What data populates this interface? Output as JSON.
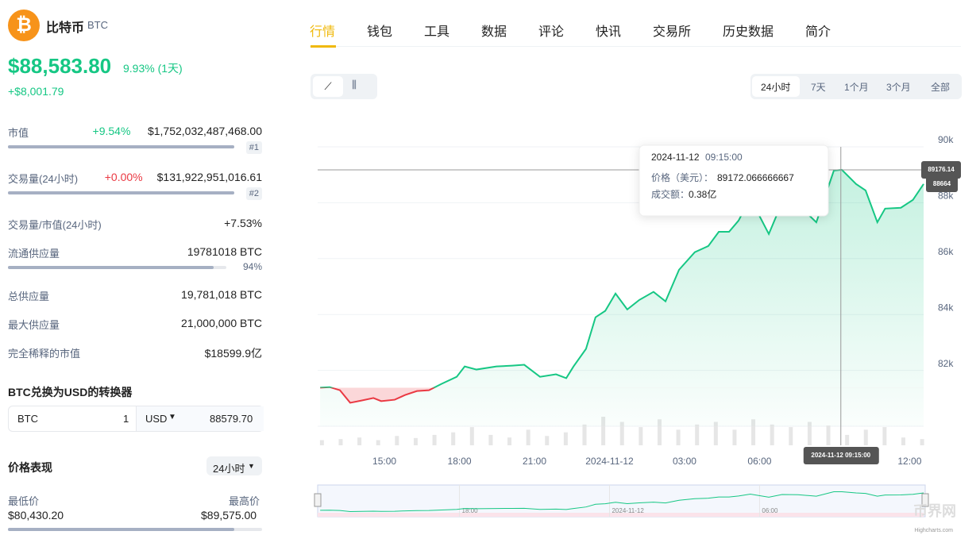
{
  "header": {
    "name": "比特币",
    "symbol": "BTC",
    "price": "$88,583.80",
    "change": "9.93% (1天)",
    "change_abs": "+$8,001.79"
  },
  "stats": [
    {
      "label": "市值",
      "change": "+9.54%",
      "value": "$1,752,032,487,468.00",
      "rank": "#1"
    },
    {
      "label": "交易量(24小时)",
      "change": "+0.00%",
      "value": "$131,922,951,016.61",
      "rank": "#2"
    },
    {
      "label": "交易量/市值(24小时)",
      "value": "+7.53%"
    },
    {
      "label": "流通供应量",
      "value": "19781018 BTC",
      "percent": 94,
      "percent_label": "94%"
    },
    {
      "label": "总供应量",
      "value": "19,781,018 BTC"
    },
    {
      "label": "最大供应量",
      "value": "21,000,000 BTC"
    },
    {
      "label": "完全稀释的市值",
      "value": "$18599.9亿"
    }
  ],
  "converter": {
    "title": "BTC兑换为USD的转换器",
    "from": "BTC",
    "amount": "1",
    "to": "USD",
    "result": "88579.70"
  },
  "performance": {
    "title": "价格表现",
    "period": "24小时",
    "low_label": "最低价",
    "low": "$80,430.20",
    "high_label": "最高价",
    "high": "$89,575.00"
  },
  "tabs": [
    "行情",
    "钱包",
    "工具",
    "数据",
    "评论",
    "快讯",
    "交易所",
    "历史数据",
    "简介"
  ],
  "ranges": [
    "24小时",
    "7天",
    "1个月",
    "3个月",
    "全部"
  ],
  "chart_data": {
    "type": "area",
    "grid": true,
    "x": [
      12.43,
      12.81,
      13.22,
      13.63,
      14.08,
      14.56,
      14.87,
      15.41,
      15.83,
      16.3,
      16.78,
      17.29,
      17.89,
      18.21,
      18.68,
      19.48,
      20.11,
      20.59,
      21.22,
      21.86,
      22.27,
      22.56,
      23.06,
      23.44,
      23.83,
      24.24,
      24.71,
      25.19,
      25.76,
      26.24,
      26.78,
      27.41,
      27.95,
      28.37,
      28.78,
      29.16,
      29.63,
      30.37,
      30.9,
      31.54,
      32.27,
      32.97,
      33.29,
      33.86,
      34.24,
      34.71,
      35.02,
      35.65,
      36.13,
      36.56
    ],
    "series": [
      {
        "color": "#16c784",
        "below_color": "#ea3943",
        "values": [
          81380,
          81400,
          81290,
          80840,
          80920,
          81010,
          80900,
          80950,
          81120,
          81260,
          81290,
          81520,
          81770,
          82140,
          82030,
          82140,
          82170,
          82200,
          81770,
          81860,
          81720,
          82140,
          82770,
          83900,
          84130,
          84750,
          84180,
          84520,
          84810,
          84470,
          85600,
          86230,
          86450,
          86960,
          86960,
          87360,
          88160,
          86880,
          88010,
          87930,
          87300,
          89150,
          89180,
          88670,
          88440,
          87300,
          87790,
          87820,
          88100,
          88670
        ]
      }
    ],
    "volume": {
      "color": "#e6e6e6",
      "x": [
        12.5,
        13.25,
        14,
        14.75,
        15.5,
        16.25,
        17,
        17.75,
        18.5,
        19.25,
        20,
        20.75,
        21.5,
        22.25,
        23,
        23.75,
        24.5,
        25.25,
        26,
        26.75,
        27.5,
        28.25,
        29,
        29.75,
        30.5,
        31.25,
        32,
        32.75,
        33.5,
        34.25,
        35,
        35.75,
        36.5
      ],
      "values": [
        0.1,
        0.12,
        0.15,
        0.1,
        0.18,
        0.14,
        0.2,
        0.25,
        0.35,
        0.2,
        0.15,
        0.3,
        0.18,
        0.25,
        0.4,
        0.55,
        0.45,
        0.35,
        0.5,
        0.3,
        0.4,
        0.45,
        0.3,
        0.5,
        0.4,
        0.35,
        0.45,
        0.38,
        0.2,
        0.3,
        0.35,
        0.15,
        0.12
      ]
    },
    "xlim": [
      12.33,
      36.56
    ],
    "xticks": [
      {
        "value": 15,
        "label": "15:00"
      },
      {
        "value": 18,
        "label": "18:00"
      },
      {
        "value": 21,
        "label": "21:00"
      },
      {
        "value": 24,
        "label": "2024-11-12"
      },
      {
        "value": 27,
        "label": "03:00"
      },
      {
        "value": 30,
        "label": "06:00"
      },
      {
        "value": 36,
        "label": "12:00"
      }
    ],
    "ylim": [
      80000,
      90000
    ],
    "yticks": [
      {
        "value": 82000,
        "label": "82k"
      },
      {
        "value": 84000,
        "label": "84k"
      },
      {
        "value": 86000,
        "label": "86k"
      },
      {
        "value": 88000,
        "label": "88k"
      },
      {
        "value": 90000,
        "label": "90k"
      }
    ],
    "hover": {
      "x": 33.25,
      "y": 89176.14,
      "last": 88664,
      "crosshair_label": "2024-11-12 09:15:00",
      "date": "2024-11-12",
      "time": "09:15:00",
      "price_label": "价格（美元）：",
      "price": "89172.066666667",
      "volume_label": "成交额：",
      "volume": "0.38亿"
    },
    "navigator": {
      "xticks": [
        {
          "value": 18,
          "label": "18:00"
        },
        {
          "value": 24,
          "label": "2024-11-12"
        },
        {
          "value": 30,
          "label": "06:00"
        }
      ],
      "credit": "Highcharts.com",
      "watermark": "币界网"
    }
  }
}
